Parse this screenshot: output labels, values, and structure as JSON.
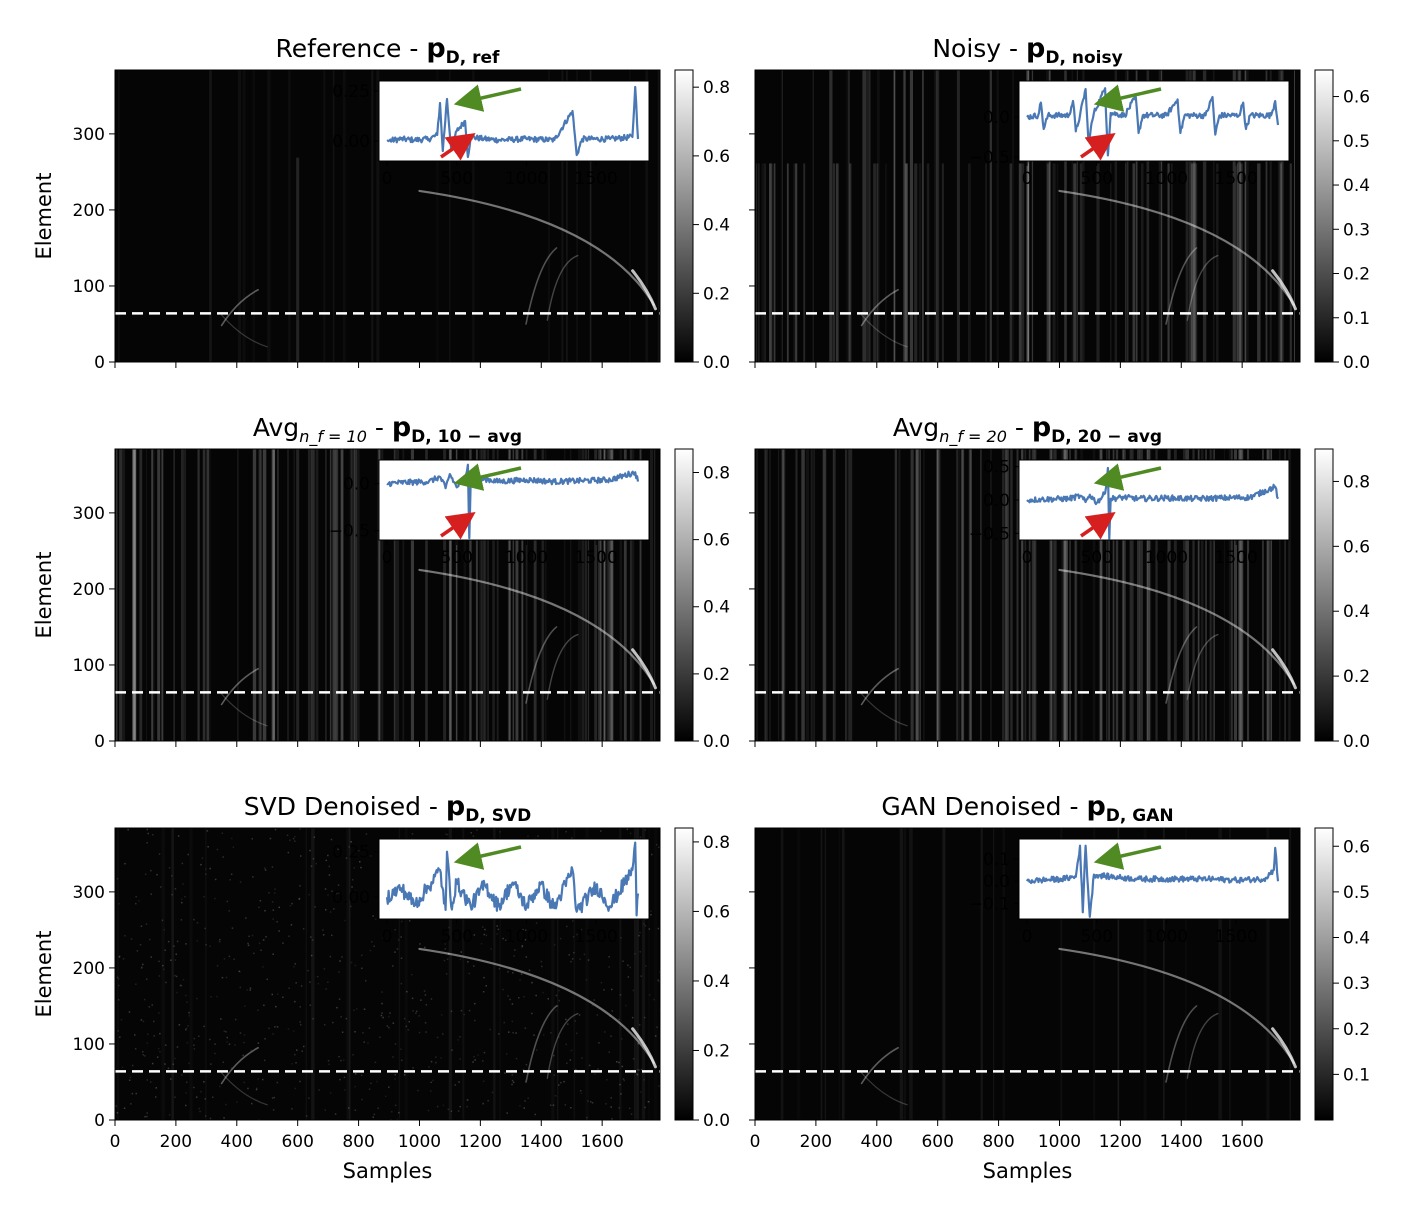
{
  "chart_data": {
    "type": "heatmap",
    "xlabel": "Samples",
    "ylabel": "Element",
    "xlim": [
      0,
      1790
    ],
    "ylim": [
      0,
      384
    ],
    "x_ticks": [
      "0",
      "200",
      "400",
      "600",
      "800",
      "1000",
      "1200",
      "1400",
      "1600"
    ],
    "y_ticks": [
      "0",
      "100",
      "200",
      "300"
    ],
    "inset_x_ticks": [
      "0",
      "500",
      "1000",
      "1500"
    ],
    "dashed_line_element": 64,
    "colormap": "gray",
    "panels": [
      {
        "title_main": "Reference - ",
        "title_sym": "p",
        "title_sub": "D, ref",
        "colorbar_range": [
          0,
          0.85
        ],
        "colorbar_ticks": [
          "0.0",
          "0.2",
          "0.4",
          "0.6",
          "0.8"
        ],
        "inset_ylim": [
          -0.1,
          0.3
        ],
        "inset_yticks": [
          "0.25",
          "0.00"
        ],
        "inset_trace": [
          [
            0,
            0
          ],
          [
            100,
            0.01
          ],
          [
            200,
            0.005
          ],
          [
            300,
            0.01
          ],
          [
            360,
            0.03
          ],
          [
            380,
            0.19
          ],
          [
            400,
            -0.05
          ],
          [
            430,
            0.21
          ],
          [
            460,
            -0.04
          ],
          [
            500,
            0.05
          ],
          [
            560,
            0.1
          ],
          [
            580,
            -0.08
          ],
          [
            600,
            0.02
          ],
          [
            700,
            0.01
          ],
          [
            800,
            0.005
          ],
          [
            1000,
            0.01
          ],
          [
            1200,
            0.005
          ],
          [
            1330,
            0.15
          ],
          [
            1360,
            -0.07
          ],
          [
            1400,
            0.01
          ],
          [
            1600,
            0.01
          ],
          [
            1760,
            0.02
          ],
          [
            1780,
            0.27
          ],
          [
            1800,
            0.01
          ]
        ],
        "arrows": {
          "green": true,
          "red": true
        }
      },
      {
        "title_main": "Noisy - ",
        "title_sym": "p",
        "title_sub": "D, noisy",
        "colorbar_range": [
          0,
          0.66
        ],
        "colorbar_ticks": [
          "0.0",
          "0.1",
          "0.2",
          "0.3",
          "0.4",
          "0.5",
          "0.6"
        ],
        "inset_ylim": [
          -0.55,
          0.45
        ],
        "inset_yticks": [
          "0.0",
          "−0.5"
        ],
        "inset_trace": [
          [
            0,
            0
          ],
          [
            80,
            0.02
          ],
          [
            100,
            0.18
          ],
          [
            120,
            -0.15
          ],
          [
            150,
            0.02
          ],
          [
            300,
            0.02
          ],
          [
            330,
            0.2
          ],
          [
            350,
            -0.18
          ],
          [
            380,
            0.02
          ],
          [
            420,
            0.35
          ],
          [
            440,
            -0.3
          ],
          [
            480,
            0.05
          ],
          [
            560,
            0.36
          ],
          [
            580,
            -0.48
          ],
          [
            600,
            0.05
          ],
          [
            700,
            0.02
          ],
          [
            780,
            0.25
          ],
          [
            800,
            -0.2
          ],
          [
            830,
            0.02
          ],
          [
            1000,
            0.02
          ],
          [
            1080,
            0.22
          ],
          [
            1100,
            -0.2
          ],
          [
            1130,
            0.02
          ],
          [
            1280,
            0.02
          ],
          [
            1330,
            0.25
          ],
          [
            1350,
            -0.22
          ],
          [
            1380,
            0.02
          ],
          [
            1520,
            0.02
          ],
          [
            1550,
            0.18
          ],
          [
            1570,
            -0.15
          ],
          [
            1600,
            0.02
          ],
          [
            1750,
            0.02
          ],
          [
            1780,
            0.2
          ],
          [
            1800,
            -0.1
          ]
        ],
        "arrows": {
          "green": true,
          "red": true
        }
      },
      {
        "title_main": "Avg",
        "title_math": "n_f = 10",
        "title_sep": " - ",
        "title_sym": "p",
        "title_sub": "D, 10 − avg",
        "colorbar_range": [
          0,
          0.87
        ],
        "colorbar_ticks": [
          "0.0",
          "0.2",
          "0.4",
          "0.6",
          "0.8"
        ],
        "inset_ylim": [
          -0.6,
          0.25
        ],
        "inset_yticks": [
          "0.0",
          "−0.5"
        ],
        "inset_trace": [
          [
            0,
            0
          ],
          [
            100,
            0.01
          ],
          [
            300,
            0.02
          ],
          [
            380,
            0.07
          ],
          [
            420,
            -0.05
          ],
          [
            450,
            0.1
          ],
          [
            500,
            -0.04
          ],
          [
            560,
            0.08
          ],
          [
            580,
            0.2
          ],
          [
            590,
            -0.58
          ],
          [
            600,
            0.02
          ],
          [
            700,
            0.05
          ],
          [
            800,
            0.02
          ],
          [
            1000,
            0.04
          ],
          [
            1200,
            0.02
          ],
          [
            1400,
            0.03
          ],
          [
            1600,
            0.04
          ],
          [
            1780,
            0.12
          ],
          [
            1800,
            0.02
          ]
        ],
        "arrows": {
          "green": true,
          "red": true
        }
      },
      {
        "title_main": "Avg",
        "title_math": "n_f = 20",
        "title_sep": " - ",
        "title_sym": "p",
        "title_sub": "D, 20 − avg",
        "colorbar_range": [
          0,
          0.9
        ],
        "colorbar_ticks": [
          "0.0",
          "0.2",
          "0.4",
          "0.6",
          "0.8"
        ],
        "inset_ylim": [
          -0.6,
          0.6
        ],
        "inset_yticks": [
          "0.5",
          "0.0",
          "−0.5"
        ],
        "inset_trace": [
          [
            0,
            0
          ],
          [
            100,
            0.01
          ],
          [
            300,
            0.02
          ],
          [
            380,
            0.06
          ],
          [
            420,
            -0.03
          ],
          [
            450,
            0.08
          ],
          [
            500,
            -0.04
          ],
          [
            560,
            0.1
          ],
          [
            580,
            0.48
          ],
          [
            590,
            -0.58
          ],
          [
            600,
            0.02
          ],
          [
            700,
            0.04
          ],
          [
            800,
            0.02
          ],
          [
            1000,
            0.03
          ],
          [
            1200,
            0.02
          ],
          [
            1400,
            0.03
          ],
          [
            1600,
            0.04
          ],
          [
            1780,
            0.2
          ],
          [
            1800,
            0.02
          ]
        ],
        "arrows": {
          "green": true,
          "red": true
        }
      },
      {
        "title_main": "SVD Denoised - ",
        "title_sym": "p",
        "title_sub": "D, SVD",
        "colorbar_range": [
          0,
          0.84
        ],
        "colorbar_ticks": [
          "0.0",
          "0.2",
          "0.4",
          "0.6",
          "0.8"
        ],
        "inset_ylim": [
          -0.12,
          0.32
        ],
        "inset_yticks": [
          "0.25",
          "0.00"
        ],
        "inset_trace": [
          [
            0,
            0
          ],
          [
            100,
            0.05
          ],
          [
            200,
            -0.04
          ],
          [
            300,
            0.06
          ],
          [
            380,
            0.15
          ],
          [
            420,
            -0.07
          ],
          [
            430,
            0.25
          ],
          [
            460,
            -0.05
          ],
          [
            500,
            0.08
          ],
          [
            600,
            -0.05
          ],
          [
            700,
            0.07
          ],
          [
            800,
            -0.05
          ],
          [
            900,
            0.08
          ],
          [
            1000,
            -0.05
          ],
          [
            1100,
            0.07
          ],
          [
            1200,
            -0.06
          ],
          [
            1330,
            0.15
          ],
          [
            1360,
            -0.08
          ],
          [
            1500,
            0.06
          ],
          [
            1600,
            -0.05
          ],
          [
            1760,
            0.15
          ],
          [
            1780,
            0.3
          ],
          [
            1790,
            -0.1
          ],
          [
            1800,
            0.02
          ]
        ],
        "arrows": {
          "green": true,
          "red": false
        }
      },
      {
        "title_main": "GAN Denoised - ",
        "title_sym": "p",
        "title_sub": "D, GAN",
        "colorbar_range": [
          0,
          0.64
        ],
        "colorbar_ticks": [
          "0.1",
          "0.2",
          "0.3",
          "0.4",
          "0.5",
          "0.6"
        ],
        "inset_ylim": [
          -0.17,
          0.19
        ],
        "inset_yticks": [
          "0.1",
          "0.0",
          "−0.1"
        ],
        "inset_trace": [
          [
            0,
            0
          ],
          [
            100,
            0.005
          ],
          [
            250,
            0.01
          ],
          [
            350,
            0.02
          ],
          [
            380,
            0.16
          ],
          [
            400,
            -0.14
          ],
          [
            420,
            0.16
          ],
          [
            450,
            -0.16
          ],
          [
            480,
            0.03
          ],
          [
            600,
            0.02
          ],
          [
            800,
            0.01
          ],
          [
            1000,
            0.01
          ],
          [
            1300,
            0.01
          ],
          [
            1500,
            0.005
          ],
          [
            1700,
            0.01
          ],
          [
            1770,
            0.05
          ],
          [
            1780,
            0.15
          ],
          [
            1800,
            0.0
          ]
        ],
        "arrows": {
          "green": true,
          "red": false
        }
      }
    ]
  }
}
